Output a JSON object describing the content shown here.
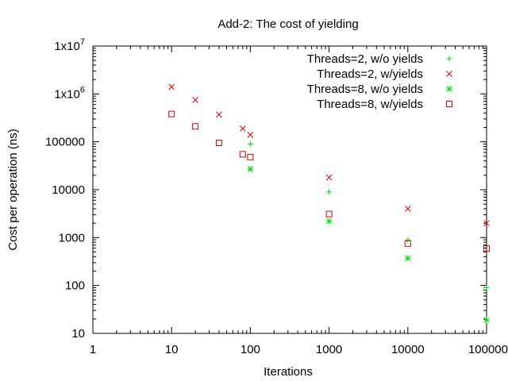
{
  "chart_data": {
    "type": "scatter",
    "title": "Add-2: The cost of yielding",
    "xlabel": "Iterations",
    "ylabel": "Cost per operation (ns)",
    "xscale": "log",
    "yscale": "log",
    "xlim": [
      1,
      100000
    ],
    "ylim": [
      10,
      10000000
    ],
    "grid": false,
    "legend_position": "top-right",
    "x_tick_labels": [
      {
        "value": 1,
        "label": "1"
      },
      {
        "value": 10,
        "label": "10"
      },
      {
        "value": 100,
        "label": "100"
      },
      {
        "value": 1000,
        "label": "1000"
      },
      {
        "value": 10000,
        "label": "10000"
      },
      {
        "value": 100000,
        "label": "100000"
      }
    ],
    "y_tick_labels": [
      {
        "value": 10,
        "label": "10"
      },
      {
        "value": 100,
        "label": "100"
      },
      {
        "value": 1000,
        "label": "1000"
      },
      {
        "value": 10000,
        "label": "10000"
      },
      {
        "value": 100000,
        "label": "100000"
      },
      {
        "value": 1000000,
        "base": "1x10",
        "exp": "6"
      },
      {
        "value": 10000000,
        "base": "1x10",
        "exp": "7"
      }
    ],
    "series": [
      {
        "name": "Threads=2, w/o yields",
        "marker": "plus",
        "color": "#00dd00",
        "points": [
          [
            100,
            90000
          ],
          [
            1000,
            9000
          ],
          [
            10000,
            900
          ],
          [
            100000,
            90
          ]
        ]
      },
      {
        "name": "Threads=2, w/yields",
        "marker": "cross",
        "color": "#dd0000",
        "points": [
          [
            10,
            1400000
          ],
          [
            20,
            750000
          ],
          [
            40,
            370000
          ],
          [
            80,
            190000
          ],
          [
            100,
            140000
          ],
          [
            1000,
            18000
          ],
          [
            10000,
            4000
          ],
          [
            100000,
            2000
          ]
        ]
      },
      {
        "name": "Threads=8, w/o yields",
        "marker": "star",
        "color": "#00dd00",
        "points": [
          [
            100,
            27000
          ],
          [
            1000,
            2200
          ],
          [
            10000,
            370
          ],
          [
            100000,
            19
          ]
        ]
      },
      {
        "name": "Threads=8, w/yields",
        "marker": "square",
        "color": "#dd0000",
        "points": [
          [
            10,
            380000
          ],
          [
            20,
            210000
          ],
          [
            40,
            95000
          ],
          [
            80,
            55000
          ],
          [
            100,
            48000
          ],
          [
            1000,
            3100
          ],
          [
            10000,
            750
          ],
          [
            100000,
            590
          ]
        ]
      }
    ]
  }
}
